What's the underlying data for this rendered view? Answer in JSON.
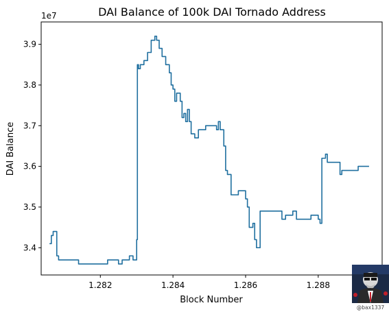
{
  "chart_data": {
    "type": "line",
    "title": "DAI Balance of 100k DAI Tornado Address",
    "xlabel": "Block Number",
    "ylabel": "DAI Balance",
    "y_offset_label": "1e7",
    "x_ticks": [
      1.282,
      1.284,
      1.286,
      1.288
    ],
    "x_tick_labels": [
      "1.282",
      "1.284",
      "1.286",
      "1.288"
    ],
    "y_ticks": [
      3.4,
      3.5,
      3.6,
      3.7,
      3.8,
      3.9
    ],
    "y_tick_labels": [
      "3.4",
      "3.5",
      "3.6",
      "3.7",
      "3.8",
      "3.9"
    ],
    "xlim": [
      1.28037,
      1.28976
    ],
    "ylim": [
      3.333,
      3.955
    ],
    "grid": false,
    "line_color": "#1f6f9f",
    "series": [
      {
        "x": [
          1.2806,
          1.28065,
          1.28065,
          1.2807,
          1.2807,
          1.2808,
          1.2808,
          1.28085,
          1.28085,
          1.2809,
          1.2809,
          1.2814,
          1.2814,
          1.2822,
          1.2822,
          1.2825,
          1.2825,
          1.2826,
          1.2826,
          1.2827,
          1.2827,
          1.2828,
          1.2828,
          1.2829,
          1.2829,
          1.283,
          1.283,
          1.28302,
          1.28302,
          1.28305,
          1.28305,
          1.2831,
          1.2831,
          1.2832,
          1.2832,
          1.2833,
          1.2833,
          1.2834,
          1.2834,
          1.2835,
          1.2835,
          1.28355,
          1.28355,
          1.28362,
          1.28362,
          1.2837,
          1.2837,
          1.2838,
          1.2838,
          1.2839,
          1.2839,
          1.28395,
          1.28395,
          1.284,
          1.284,
          1.28405,
          1.28405,
          1.2841,
          1.2841,
          1.2842,
          1.2842,
          1.28425,
          1.28425,
          1.2843,
          1.2843,
          1.28435,
          1.28435,
          1.2844,
          1.2844,
          1.28445,
          1.28445,
          1.2845,
          1.2845,
          1.2846,
          1.2846,
          1.2847,
          1.2847,
          1.2849,
          1.2849,
          1.2852,
          1.2852,
          1.28525,
          1.28525,
          1.2853,
          1.2853,
          1.2854,
          1.2854,
          1.28545,
          1.28545,
          1.2855,
          1.2855,
          1.2856,
          1.2856,
          1.2858,
          1.2858,
          1.286,
          1.286,
          1.28605,
          1.28605,
          1.2861,
          1.2861,
          1.2862,
          1.2862,
          1.28625,
          1.28625,
          1.2863,
          1.2863,
          1.2864,
          1.2864,
          1.2868,
          1.2868,
          1.287,
          1.287,
          1.2871,
          1.2871,
          1.2873,
          1.2873,
          1.2874,
          1.2874,
          1.2878,
          1.2878,
          1.288,
          1.288,
          1.28805,
          1.28805,
          1.2881,
          1.2881,
          1.2882,
          1.2882,
          1.28825,
          1.28825,
          1.2883,
          1.2883,
          1.2886,
          1.2886,
          1.28865,
          1.28865,
          1.2887,
          1.2887,
          1.2891,
          1.2891,
          1.2894
        ],
        "y": [
          3.41,
          3.41,
          3.43,
          3.43,
          3.44,
          3.44,
          3.38,
          3.38,
          3.37,
          3.37,
          3.37,
          3.37,
          3.36,
          3.36,
          3.37,
          3.37,
          3.36,
          3.36,
          3.37,
          3.37,
          3.37,
          3.37,
          3.38,
          3.38,
          3.37,
          3.37,
          3.42,
          3.42,
          3.85,
          3.85,
          3.84,
          3.84,
          3.85,
          3.85,
          3.86,
          3.86,
          3.88,
          3.88,
          3.91,
          3.91,
          3.92,
          3.92,
          3.91,
          3.91,
          3.89,
          3.89,
          3.87,
          3.87,
          3.85,
          3.85,
          3.83,
          3.83,
          3.8,
          3.8,
          3.79,
          3.79,
          3.76,
          3.76,
          3.78,
          3.78,
          3.76,
          3.76,
          3.72,
          3.72,
          3.73,
          3.73,
          3.71,
          3.71,
          3.74,
          3.74,
          3.71,
          3.71,
          3.68,
          3.68,
          3.67,
          3.67,
          3.69,
          3.69,
          3.7,
          3.7,
          3.69,
          3.69,
          3.71,
          3.71,
          3.69,
          3.69,
          3.65,
          3.65,
          3.59,
          3.59,
          3.58,
          3.58,
          3.53,
          3.53,
          3.54,
          3.54,
          3.52,
          3.52,
          3.5,
          3.5,
          3.45,
          3.45,
          3.46,
          3.46,
          3.42,
          3.42,
          3.4,
          3.4,
          3.49,
          3.49,
          3.49,
          3.49,
          3.47,
          3.47,
          3.48,
          3.48,
          3.49,
          3.49,
          3.47,
          3.47,
          3.48,
          3.48,
          3.47,
          3.47,
          3.46,
          3.46,
          3.62,
          3.62,
          3.63,
          3.63,
          3.61,
          3.61,
          3.61,
          3.61,
          3.58,
          3.58,
          3.59,
          3.59,
          3.59,
          3.59,
          3.6,
          3.6
        ]
      }
    ]
  },
  "watermark": {
    "handle": "@bax1337",
    "avatar_icon": "hacker-avatar-icon"
  }
}
